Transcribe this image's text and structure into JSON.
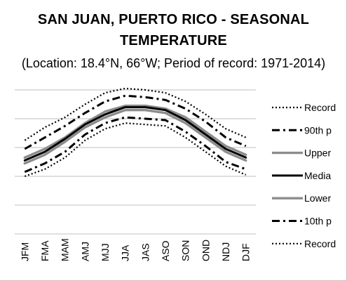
{
  "chart_data": {
    "type": "line",
    "title_line1": "SAN JUAN, PUERTO RICO - SEASONAL",
    "title_line2": "TEMPERATURE",
    "subtitle": "(Location: 18.4°N, 66°W; Period of record: 1971-2014)",
    "xlabel": "",
    "ylabel": "",
    "categories": [
      "JFM",
      "FMA",
      "MAM",
      "AMJ",
      "MJJ",
      "JJA",
      "JAS",
      "ASO",
      "SON",
      "OND",
      "NDJ",
      "DJF"
    ],
    "ylim": [
      0,
      5
    ],
    "grid": true,
    "legend_position": "right",
    "series": [
      {
        "name": "Record",
        "style": "dotted",
        "color": "#000000",
        "values": [
          3.25,
          3.7,
          4.05,
          4.5,
          4.9,
          5.05,
          5.0,
          4.9,
          4.6,
          4.15,
          3.65,
          3.35
        ]
      },
      {
        "name": "90th p",
        "style": "dashdot",
        "color": "#000000",
        "values": [
          2.95,
          3.35,
          3.75,
          4.2,
          4.6,
          4.8,
          4.75,
          4.65,
          4.35,
          3.9,
          3.35,
          3.05
        ]
      },
      {
        "name": "Upper",
        "style": "solid",
        "color": "#8c8c8c",
        "values": [
          2.65,
          2.95,
          3.35,
          3.85,
          4.25,
          4.45,
          4.45,
          4.35,
          4.05,
          3.55,
          3.05,
          2.75
        ]
      },
      {
        "name": "Media",
        "style": "solid",
        "color": "#000000",
        "values": [
          2.55,
          2.85,
          3.3,
          3.8,
          4.15,
          4.4,
          4.4,
          4.3,
          3.95,
          3.45,
          2.95,
          2.65
        ]
      },
      {
        "name": "Lower",
        "style": "solid",
        "color": "#8c8c8c",
        "values": [
          2.45,
          2.75,
          3.2,
          3.7,
          4.05,
          4.3,
          4.3,
          4.2,
          3.85,
          3.35,
          2.85,
          2.55
        ]
      },
      {
        "name": "10th p",
        "style": "dashdot",
        "color": "#000000",
        "values": [
          2.15,
          2.45,
          2.85,
          3.45,
          3.85,
          4.05,
          4.0,
          3.95,
          3.55,
          3.05,
          2.5,
          2.25
        ]
      },
      {
        "name": "Record",
        "style": "dotted",
        "color": "#000000",
        "values": [
          2.0,
          2.25,
          2.65,
          3.25,
          3.65,
          3.85,
          3.8,
          3.75,
          3.35,
          2.85,
          2.35,
          2.05
        ]
      }
    ]
  }
}
